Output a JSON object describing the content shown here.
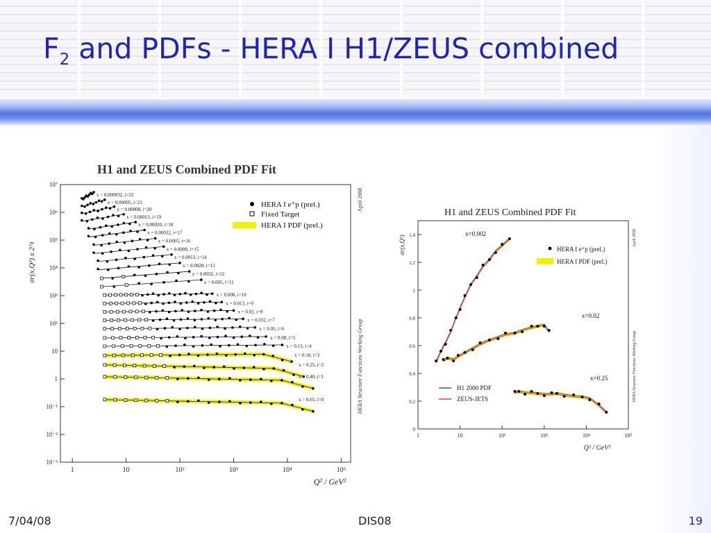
{
  "slide": {
    "title_main": "F",
    "title_sub": "2",
    "title_rest": " and PDFs - HERA I H1/ZEUS combined",
    "date": "7/04/08",
    "conference": "DIS08",
    "page_number": "19"
  },
  "chart_data": [
    {
      "type": "scatter",
      "title": "H1 and ZEUS Combined PDF Fit",
      "ylabel": "σr(x,Q²) x 2^i",
      "xlabel": "Q² / GeV²",
      "xscale": "log",
      "yscale": "log",
      "xlim": [
        0.6,
        150000
      ],
      "ylim": [
        0.001,
        10000000
      ],
      "x_ticks": [
        "1",
        "10",
        "10²",
        "10³",
        "10⁴",
        "10⁵"
      ],
      "y_ticks": [
        "10⁻³",
        "10⁻²",
        "10⁻¹",
        "1",
        "10",
        "10²",
        "10³",
        "10⁴",
        "10⁵",
        "10⁶",
        "10⁷"
      ],
      "legend": {
        "position": "top-right",
        "entries": [
          "HERA I e⁺p (prel.)",
          "Fixed Target",
          "HERA I PDF (prel.)"
        ]
      },
      "side_labels": [
        "April 2008",
        "HERA Structure Functions Working Group"
      ],
      "bin_labels": [
        "x = 0.000032, i=22",
        "x = 0.00005, i=21",
        "x = 0.00008, i=20",
        "x = 0.00013, i=19",
        "x = 0.00020, i=18",
        "x = 0.00032, i=17",
        "x = 0.0005, i=16",
        "x = 0.0008, i=15",
        "x = 0.0013, i=14",
        "x = 0.0020, i=13",
        "x = 0.0032, i=12",
        "x = 0.005, i=11",
        "x = 0.008, i=10",
        "x = 0.013, i=9",
        "x = 0.02, i=8",
        "x = 0.032, i=7",
        "x = 0.05, i=6",
        "x = 0.08, i=5",
        "x = 0.13, i=4",
        "x = 0.18, i=3",
        "x = 0.25, i=2",
        "x = 0.40, i=1",
        "x = 0.65, i=0"
      ],
      "series": [
        {
          "i": 22,
          "q2_range": [
            1.5,
            2.5
          ],
          "level": 3000000
        },
        {
          "i": 21,
          "q2_range": [
            1.5,
            4
          ],
          "level": 1600000
        },
        {
          "i": 20,
          "q2_range": [
            1.5,
            6
          ],
          "level": 900000
        },
        {
          "i": 19,
          "q2_range": [
            1.5,
            9
          ],
          "level": 480000
        },
        {
          "i": 18,
          "q2_range": [
            2,
            15
          ],
          "level": 250000
        },
        {
          "i": 17,
          "q2_range": [
            2,
            22
          ],
          "level": 130000
        },
        {
          "i": 16,
          "q2_range": [
            2.5,
            35
          ],
          "level": 65000
        },
        {
          "i": 15,
          "q2_range": [
            2.5,
            50
          ],
          "level": 33000
        },
        {
          "i": 14,
          "q2_range": [
            3,
            70
          ],
          "level": 17000
        },
        {
          "i": 13,
          "q2_range": [
            3,
            100
          ],
          "level": 8500
        },
        {
          "i": 12,
          "q2_range": [
            3.5,
            150
          ],
          "level": 4200
        },
        {
          "i": 11,
          "q2_range": [
            3.5,
            250
          ],
          "level": 2100
        },
        {
          "i": 10,
          "q2_range": [
            4,
            400
          ],
          "level": 1050
        },
        {
          "i": 9,
          "q2_range": [
            4,
            600
          ],
          "level": 520
        },
        {
          "i": 8,
          "q2_range": [
            4,
            1000
          ],
          "level": 260
        },
        {
          "i": 7,
          "q2_range": [
            4,
            1500
          ],
          "level": 130
        },
        {
          "i": 6,
          "q2_range": [
            4,
            2500
          ],
          "level": 64
        },
        {
          "i": 5,
          "q2_range": [
            4,
            4000
          ],
          "level": 30
        },
        {
          "i": 4,
          "q2_range": [
            4,
            8000
          ],
          "level": 15
        },
        {
          "i": 3,
          "q2_range": [
            4,
            12000
          ],
          "level": 7
        },
        {
          "i": 2,
          "q2_range": [
            4,
            20000
          ],
          "level": 3.2
        },
        {
          "i": 1,
          "q2_range": [
            4,
            30000
          ],
          "level": 1.2
        },
        {
          "i": 0,
          "q2_range": [
            4,
            30000
          ],
          "level": 0.18
        }
      ],
      "colors": {
        "pdf_band": "#f2f200",
        "points": "#000000",
        "curve": "#000000"
      }
    },
    {
      "type": "line",
      "title": "H1 and ZEUS Combined PDF Fit",
      "ylabel": "σr(x,Q²)",
      "xlabel": "Q² / GeV²",
      "xscale": "log",
      "xlim": [
        1,
        100000
      ],
      "ylim": [
        0,
        1.5
      ],
      "x_ticks": [
        "1",
        "10",
        "10²",
        "10³",
        "10⁴",
        "10⁵"
      ],
      "y_ticks": [
        "0",
        "0.2",
        "0.4",
        "0.6",
        "0.8",
        "1",
        "1.2",
        "1.4"
      ],
      "legend": {
        "position": "top-right",
        "entries": [
          "HERA I e⁺p (prel.)",
          "HERA I PDF (prel.)"
        ]
      },
      "legend2": {
        "position": "bottom-left",
        "entries": [
          "H1 2000 PDF",
          "ZEUS-JETS"
        ]
      },
      "side_labels": [
        "April 2008",
        "HERA Structure Functions Working Group"
      ],
      "series": [
        {
          "name": "x=0.002",
          "points": [
            [
              2.7,
              0.48
            ],
            [
              3.5,
              0.56
            ],
            [
              4.5,
              0.62
            ],
            [
              6,
              0.7
            ],
            [
              8,
              0.8
            ],
            [
              10,
              0.87
            ],
            [
              13,
              0.95
            ],
            [
              18,
              1.04
            ],
            [
              25,
              1.1
            ],
            [
              35,
              1.17
            ],
            [
              50,
              1.22
            ],
            [
              70,
              1.28
            ],
            [
              100,
              1.32
            ],
            [
              150,
              1.37
            ]
          ]
        },
        {
          "name": "x=0.02",
          "points": [
            [
              4,
              0.49
            ],
            [
              5,
              0.51
            ],
            [
              7,
              0.5
            ],
            [
              9,
              0.52
            ],
            [
              13,
              0.55
            ],
            [
              20,
              0.58
            ],
            [
              30,
              0.61
            ],
            [
              50,
              0.64
            ],
            [
              80,
              0.66
            ],
            [
              120,
              0.68
            ],
            [
              200,
              0.69
            ],
            [
              300,
              0.71
            ],
            [
              500,
              0.73
            ],
            [
              700,
              0.74
            ],
            [
              1000,
              0.75
            ],
            [
              1300,
              0.7
            ]
          ]
        },
        {
          "name": "x=0.25",
          "points": [
            [
              200,
              0.26
            ],
            [
              250,
              0.27
            ],
            [
              350,
              0.26
            ],
            [
              500,
              0.26
            ],
            [
              700,
              0.255
            ],
            [
              1000,
              0.25
            ],
            [
              1500,
              0.25
            ],
            [
              2000,
              0.255
            ],
            [
              3000,
              0.245
            ],
            [
              5000,
              0.235
            ],
            [
              8000,
              0.23
            ],
            [
              12000,
              0.22
            ],
            [
              20000,
              0.17
            ],
            [
              30000,
              0.12
            ]
          ]
        }
      ],
      "colors": {
        "pdf_band": "#f2f200",
        "h1_curve": "#4444ff",
        "zeus_curve": "#ff3333",
        "points": "#000000"
      }
    }
  ]
}
